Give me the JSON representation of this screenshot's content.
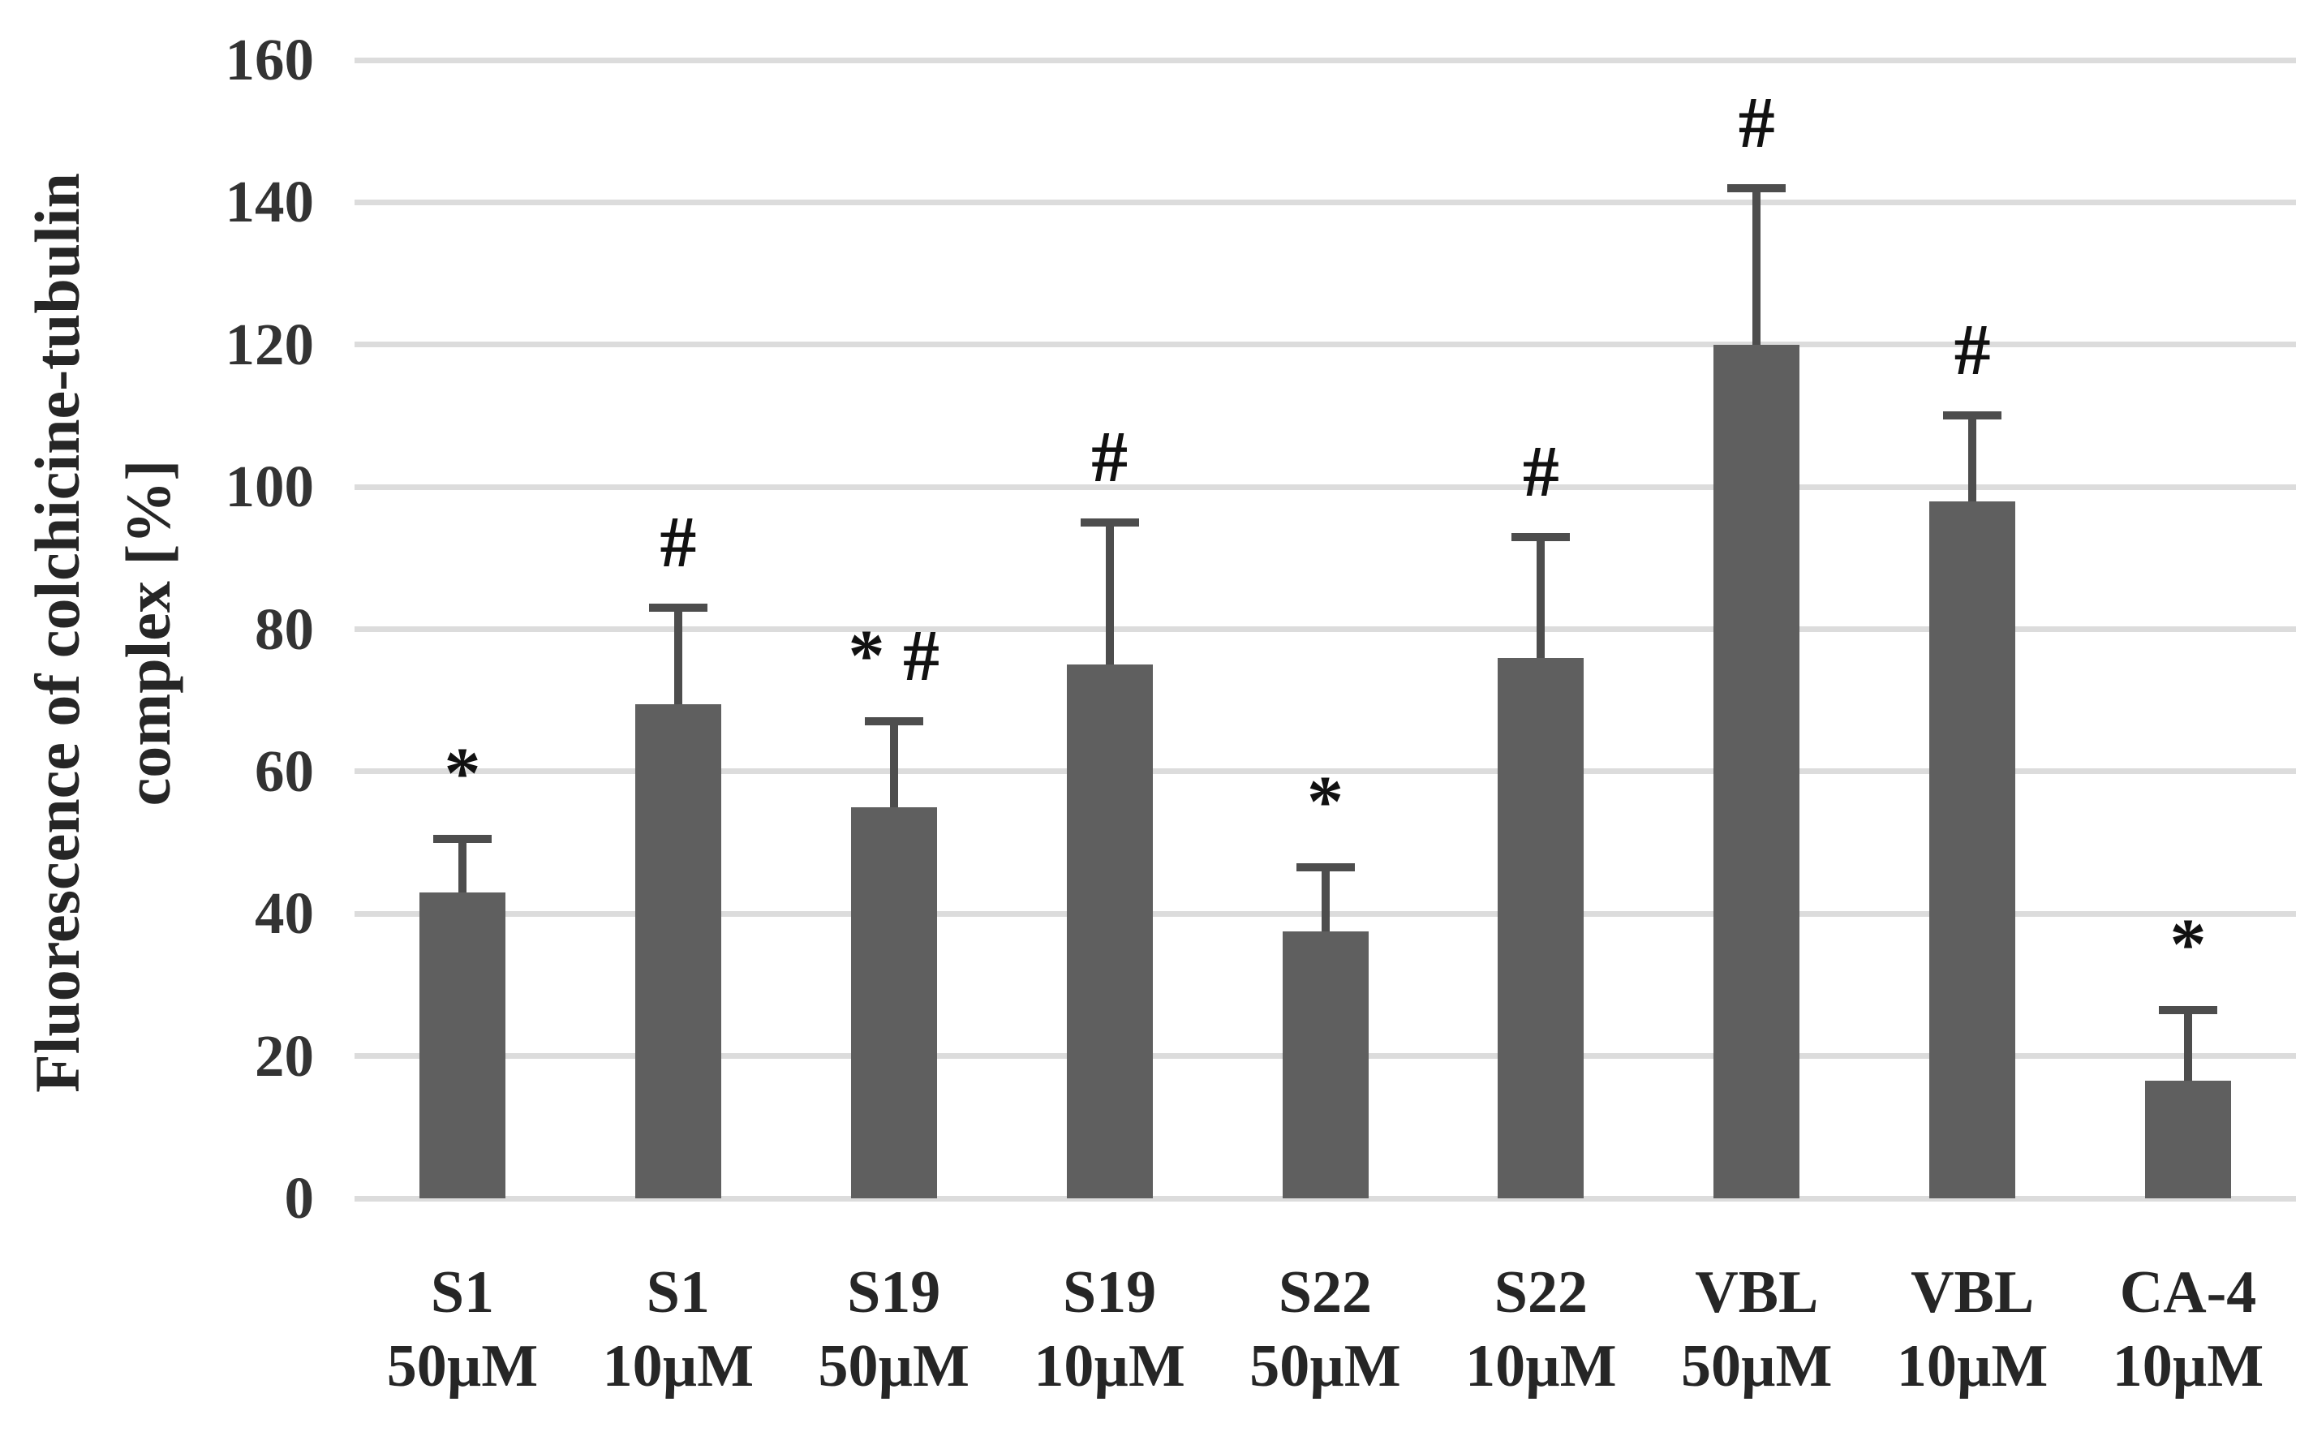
{
  "figure": {
    "background": "#ffffff"
  },
  "chart_data": {
    "type": "bar",
    "title": "",
    "ylabel": "Fluorescence of colchicine-tubulin complex [%]",
    "ylabel_line1": "Fluorescence of colchicine-tubulin",
    "ylabel_line2": "complex [%]",
    "xlabel": "",
    "ymin": 0,
    "ymax": 160,
    "ytick_interval": 20,
    "yticks": [
      0,
      20,
      40,
      60,
      80,
      100,
      120,
      140,
      160
    ],
    "grid": "horizontal",
    "legend_position": "none",
    "categories": [
      [
        "S1",
        "50µM"
      ],
      [
        "S1",
        "10µM"
      ],
      [
        "S19",
        "50µM"
      ],
      [
        "S19",
        "10µM"
      ],
      [
        "S22",
        "50µM"
      ],
      [
        "S22",
        "10µM"
      ],
      [
        "VBL",
        "50µM"
      ],
      [
        "VBL",
        "10µM"
      ],
      [
        "CA-4",
        "10µM"
      ]
    ],
    "values": [
      43,
      69.5,
      55,
      75,
      37.5,
      76,
      120,
      98,
      16.5
    ],
    "error_plus": [
      7.5,
      13.5,
      12,
      20,
      9,
      17,
      22,
      12,
      10
    ],
    "annotations": [
      "*",
      "#",
      "* #",
      "#",
      "*",
      "#",
      "#",
      "#",
      "*"
    ],
    "colors": {
      "bar": "#5f5f5f",
      "error_bar": "#4d4d4d",
      "gridline": "#dcdcdc",
      "text": "#262626"
    }
  }
}
